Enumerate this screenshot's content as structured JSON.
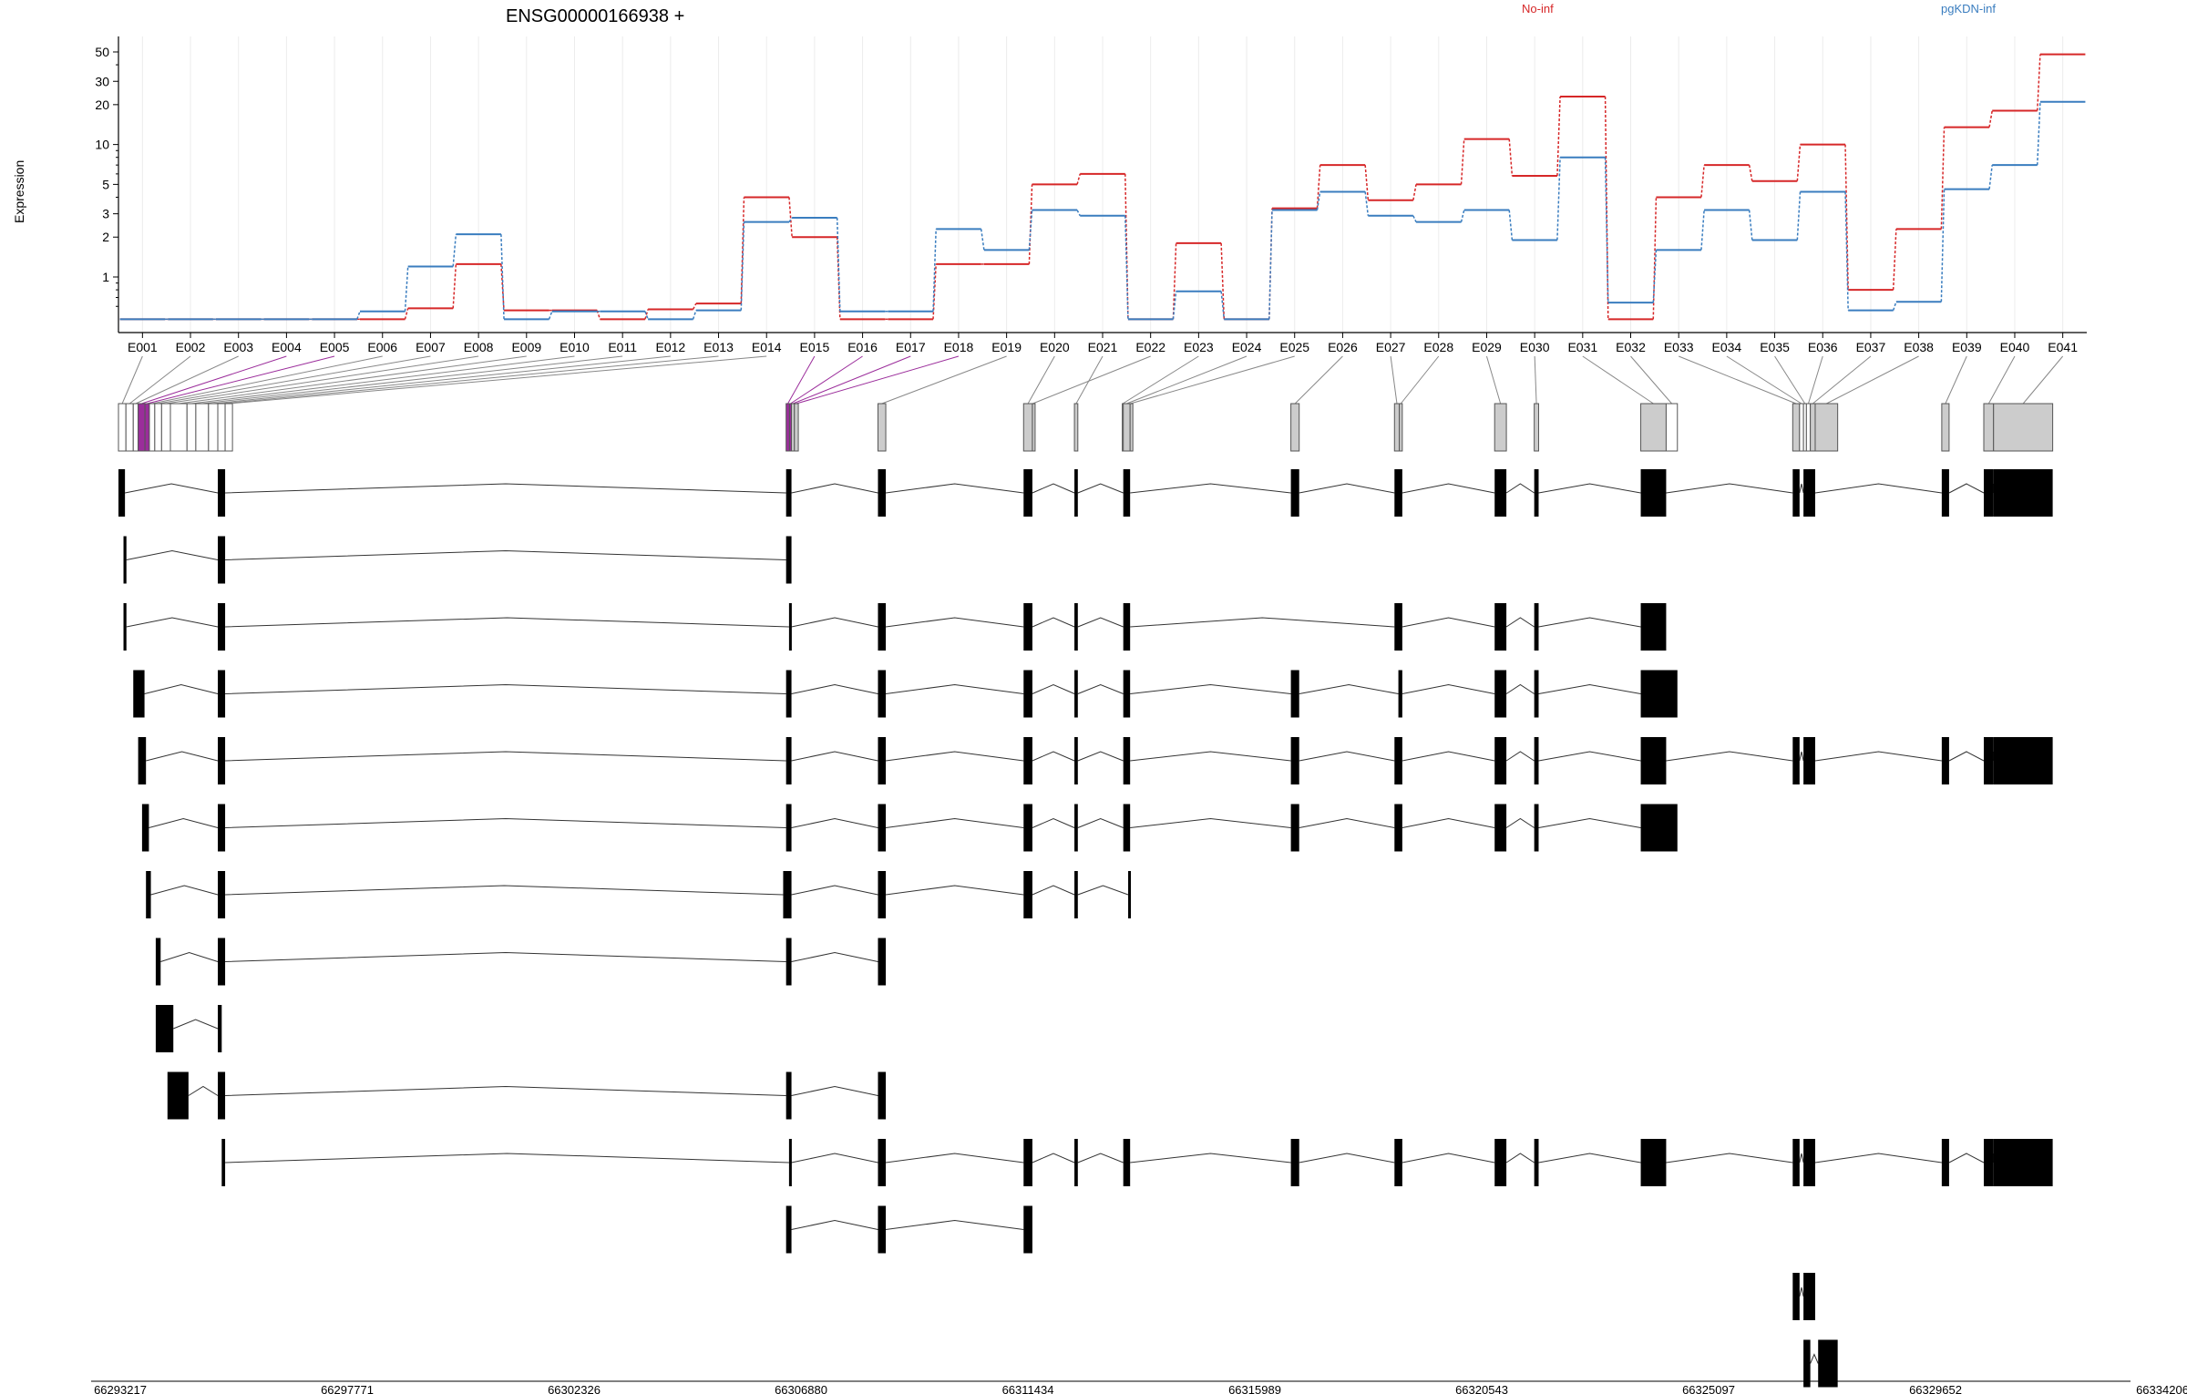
{
  "chart_data": {
    "type": "line",
    "title": "ENSG00000166938 +",
    "ylabel": "Expression",
    "yscale": "log",
    "y_ticks": [
      1,
      2,
      3,
      5,
      10,
      20,
      30,
      50
    ],
    "colors": {
      "No-inf": "#d62728",
      "pgKDN-inf": "#3a7dbf",
      "highlight": "#9b2d9b",
      "exon_fill": "#cccccc"
    },
    "categories": [
      "E001",
      "E002",
      "E003",
      "E004",
      "E005",
      "E006",
      "E007",
      "E008",
      "E009",
      "E010",
      "E011",
      "E012",
      "E013",
      "E014",
      "E015",
      "E016",
      "E017",
      "E018",
      "E019",
      "E020",
      "E021",
      "E022",
      "E023",
      "E024",
      "E025",
      "E026",
      "E027",
      "E028",
      "E029",
      "E030",
      "E031",
      "E032",
      "E033",
      "E034",
      "E035",
      "E036",
      "E037",
      "E038",
      "E039",
      "E040",
      "E041"
    ],
    "series": [
      {
        "name": "No-inf",
        "values": [
          0.48,
          0.48,
          0.48,
          0.48,
          0.48,
          0.48,
          0.58,
          1.25,
          0.56,
          0.56,
          0.48,
          0.57,
          0.63,
          4.0,
          2.0,
          0.48,
          0.48,
          1.25,
          1.25,
          5.0,
          6.0,
          0.48,
          1.8,
          0.48,
          3.3,
          7.0,
          3.8,
          5.0,
          11.0,
          5.8,
          23.0,
          0.48,
          4.0,
          7.0,
          5.3,
          10.0,
          0.8,
          2.3,
          13.5,
          18.0,
          48.0
        ]
      },
      {
        "name": "pgKDN-inf",
        "values": [
          0.48,
          0.48,
          0.48,
          0.48,
          0.48,
          0.55,
          1.2,
          2.1,
          0.48,
          0.55,
          0.55,
          0.48,
          0.56,
          2.6,
          2.8,
          0.55,
          0.55,
          2.3,
          1.6,
          3.2,
          2.9,
          0.48,
          0.78,
          0.48,
          3.2,
          4.4,
          2.9,
          2.6,
          3.2,
          1.9,
          8.0,
          0.64,
          1.6,
          3.2,
          1.9,
          4.4,
          0.56,
          0.65,
          4.6,
          7.0,
          21.0
        ]
      }
    ],
    "genomic_ticks": [
      "66293217",
      "66297771",
      "66302326",
      "66306880",
      "66311434",
      "66315989",
      "66320543",
      "66325097",
      "66329652",
      "66334206"
    ],
    "genomic_range": [
      66293217,
      66334206
    ],
    "exons": [
      [
        66293217,
        66293370
      ],
      [
        66293370,
        66293520
      ],
      [
        66293520,
        66293620
      ],
      [
        66293620,
        66293760
      ],
      [
        66293760,
        66293850
      ],
      [
        66293850,
        66293960
      ],
      [
        66293960,
        66294100
      ],
      [
        66294100,
        66294280
      ],
      [
        66294280,
        66294620
      ],
      [
        66294620,
        66294800
      ],
      [
        66294800,
        66295060
      ],
      [
        66295060,
        66295250
      ],
      [
        66295250,
        66295400
      ],
      [
        66295400,
        66295550
      ],
      [
        66306880,
        66306950
      ],
      [
        66306950,
        66306990
      ],
      [
        66306990,
        66307050
      ],
      [
        66307050,
        66307130
      ],
      [
        66308760,
        66308920
      ],
      [
        66311740,
        66311920
      ],
      [
        66312780,
        66312850
      ],
      [
        66311920,
        66311930
      ],
      [
        66313760,
        66313780
      ],
      [
        66313780,
        66313920
      ],
      [
        66313920,
        66313930
      ],
      [
        66317210,
        66317380
      ],
      [
        66319330,
        66319430
      ],
      [
        66319430,
        66319490
      ],
      [
        66321380,
        66321620
      ],
      [
        66322190,
        66322280
      ],
      [
        66324370,
        66324890
      ],
      [
        66324890,
        66325120
      ],
      [
        66327480,
        66327620
      ],
      [
        66327620,
        66327700
      ],
      [
        66327700,
        66327760
      ],
      [
        66327760,
        66327840
      ],
      [
        66327840,
        66327940
      ],
      [
        66327940,
        66328400
      ],
      [
        66330530,
        66330680
      ],
      [
        66331390,
        66331590
      ],
      [
        66331590,
        66332800
      ]
    ],
    "transcripts": [
      [
        [
          66293217,
          66293350
        ],
        [
          66295250,
          66295400
        ],
        [
          66306880,
          66306990
        ],
        [
          66308760,
          66308920
        ],
        [
          66311740,
          66311920
        ],
        [
          66312780,
          66312850
        ],
        [
          66313780,
          66313920
        ],
        [
          66317210,
          66317380
        ],
        [
          66319330,
          66319490
        ],
        [
          66321380,
          66321620
        ],
        [
          66322190,
          66322280
        ],
        [
          66324370,
          66324890
        ],
        [
          66327480,
          66327620
        ],
        [
          66327700,
          66327940
        ],
        [
          66330530,
          66330680
        ],
        [
          66331390,
          66331590
        ],
        [
          66331590,
          66332800
        ]
      ],
      [
        [
          66293320,
          66293380
        ],
        [
          66295250,
          66295400
        ],
        [
          66306880,
          66306990
        ]
      ],
      [
        [
          66293320,
          66293380
        ],
        [
          66295250,
          66295400
        ],
        [
          66306940,
          66306990
        ],
        [
          66308760,
          66308920
        ],
        [
          66311740,
          66311920
        ],
        [
          66312780,
          66312850
        ],
        [
          66313780,
          66313920
        ],
        [
          66319330,
          66319490
        ],
        [
          66321380,
          66321620
        ],
        [
          66322190,
          66322280
        ],
        [
          66324370,
          66324890
        ]
      ],
      [
        [
          66293520,
          66293750
        ],
        [
          66295250,
          66295400
        ],
        [
          66306880,
          66306990
        ],
        [
          66308760,
          66308920
        ],
        [
          66311740,
          66311920
        ],
        [
          66312780,
          66312850
        ],
        [
          66313780,
          66313920
        ],
        [
          66317210,
          66317380
        ],
        [
          66319410,
          66319490
        ],
        [
          66321380,
          66321620
        ],
        [
          66322190,
          66322280
        ],
        [
          66324370,
          66325120
        ]
      ],
      [
        [
          66293620,
          66293780
        ],
        [
          66295250,
          66295400
        ],
        [
          66306880,
          66306990
        ],
        [
          66308760,
          66308920
        ],
        [
          66311740,
          66311920
        ],
        [
          66312780,
          66312850
        ],
        [
          66313780,
          66313920
        ],
        [
          66317210,
          66317380
        ],
        [
          66319330,
          66319490
        ],
        [
          66321380,
          66321620
        ],
        [
          66322190,
          66322280
        ],
        [
          66324370,
          66324890
        ],
        [
          66327480,
          66327620
        ],
        [
          66327700,
          66327940
        ],
        [
          66330530,
          66330680
        ],
        [
          66331390,
          66331590
        ],
        [
          66331590,
          66332800
        ]
      ],
      [
        [
          66293700,
          66293840
        ],
        [
          66295250,
          66295400
        ],
        [
          66306880,
          66306990
        ],
        [
          66308760,
          66308920
        ],
        [
          66311740,
          66311920
        ],
        [
          66312780,
          66312850
        ],
        [
          66313780,
          66313920
        ],
        [
          66317210,
          66317380
        ],
        [
          66319330,
          66319490
        ],
        [
          66321380,
          66321620
        ],
        [
          66322190,
          66322280
        ],
        [
          66324370,
          66325120
        ]
      ],
      [
        [
          66293780,
          66293880
        ],
        [
          66295250,
          66295400
        ],
        [
          66306820,
          66306990
        ],
        [
          66308760,
          66308920
        ],
        [
          66311740,
          66311920
        ],
        [
          66312780,
          66312850
        ],
        [
          66313880,
          66313920
        ]
      ],
      [
        [
          66293980,
          66294080
        ],
        [
          66295250,
          66295400
        ],
        [
          66306880,
          66306990
        ],
        [
          66308760,
          66308920
        ]
      ],
      [
        [
          66293980,
          66294340
        ],
        [
          66295250,
          66295330
        ]
      ],
      [
        [
          66294220,
          66294650
        ],
        [
          66295250,
          66295400
        ],
        [
          66306880,
          66306990
        ],
        [
          66308760,
          66308920
        ]
      ],
      [
        [
          66295330,
          66295400
        ],
        [
          66306940,
          66306990
        ],
        [
          66308760,
          66308920
        ],
        [
          66311740,
          66311920
        ],
        [
          66312780,
          66312850
        ],
        [
          66313780,
          66313920
        ],
        [
          66317210,
          66317380
        ],
        [
          66319330,
          66319490
        ],
        [
          66321380,
          66321620
        ],
        [
          66322190,
          66322280
        ],
        [
          66324370,
          66324890
        ],
        [
          66327480,
          66327620
        ],
        [
          66327700,
          66327940
        ],
        [
          66330530,
          66330680
        ],
        [
          66331390,
          66331590
        ],
        [
          66331590,
          66332800
        ]
      ],
      [
        [
          66306880,
          66306990
        ],
        [
          66308760,
          66308920
        ],
        [
          66311740,
          66311920
        ]
      ],
      [
        [
          66327480,
          66327620
        ],
        [
          66327700,
          66327940
        ]
      ],
      [
        [
          66327700,
          66327840
        ],
        [
          66328000,
          66328400
        ]
      ]
    ]
  }
}
